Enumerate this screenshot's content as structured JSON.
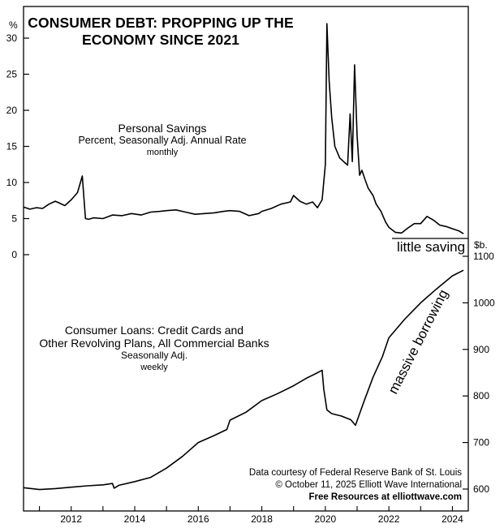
{
  "title_line1": "CONSUMER DEBT: PROPPING UP THE",
  "title_line2": "ECONOMY SINCE 2021",
  "savings_label": {
    "line1": "Personal Savings",
    "line2": "Percent, Seasonally Adj. Annual Rate",
    "line3": "monthly"
  },
  "loans_label": {
    "line1": "Consumer Loans: Credit Cards and",
    "line2": "Other Revolving Plans, All Commercial Banks",
    "line3": "Seasonally Adj.",
    "line4": "weekly"
  },
  "annotations": {
    "little_saving": "little saving",
    "massive_borrowing": "massive borrowing"
  },
  "credit": {
    "line1": "Data courtesy of Federal Reserve Bank of St. Louis",
    "line2": "© October 11, 2025  Elliott Wave International",
    "line3": "Free Resources at elliottwave.com"
  },
  "chart_data": [
    {
      "type": "line",
      "title": "Personal Savings",
      "ylabel": "%",
      "ylim": [
        0,
        33
      ],
      "yticks": [
        0,
        5,
        10,
        15,
        20,
        25,
        30
      ],
      "axis_side": "left",
      "series": [
        {
          "name": "Personal Savings",
          "x": [
            2010.5,
            2010.7,
            2010.9,
            2011.1,
            2011.3,
            2011.5,
            2011.6,
            2011.8,
            2012.0,
            2012.2,
            2012.35,
            2012.45,
            2012.55,
            2012.7,
            2013.0,
            2013.3,
            2013.6,
            2013.9,
            2014.2,
            2014.5,
            2014.8,
            2015.0,
            2015.3,
            2015.6,
            2015.9,
            2016.2,
            2016.5,
            2016.8,
            2017.0,
            2017.3,
            2017.6,
            2017.9,
            2018.0,
            2018.3,
            2018.6,
            2018.9,
            2019.0,
            2019.2,
            2019.4,
            2019.6,
            2019.75,
            2019.9,
            2020.0,
            2020.05,
            2020.12,
            2020.2,
            2020.3,
            2020.45,
            2020.6,
            2020.7,
            2020.78,
            2020.85,
            2020.92,
            2021.0,
            2021.08,
            2021.15,
            2021.25,
            2021.35,
            2021.5,
            2021.6,
            2021.75,
            2021.9,
            2022.0,
            2022.2,
            2022.4,
            2022.6,
            2022.8,
            2023.0,
            2023.2,
            2023.4,
            2023.6,
            2023.8,
            2024.0,
            2024.2,
            2024.35
          ],
          "y": [
            6.6,
            6.3,
            6.5,
            6.4,
            7.0,
            7.4,
            7.2,
            6.8,
            7.6,
            8.6,
            10.9,
            5.0,
            4.9,
            5.1,
            5.0,
            5.5,
            5.4,
            5.7,
            5.5,
            5.9,
            6.0,
            6.1,
            6.2,
            5.9,
            5.6,
            5.7,
            5.8,
            6.0,
            6.1,
            6.0,
            5.4,
            5.7,
            6.0,
            6.4,
            7.0,
            7.3,
            8.2,
            7.4,
            7.0,
            7.3,
            6.5,
            7.6,
            12.5,
            32.0,
            24.0,
            19.0,
            15.0,
            13.4,
            12.8,
            12.4,
            19.5,
            12.9,
            26.3,
            16.5,
            11.0,
            11.7,
            10.4,
            9.2,
            8.2,
            7.0,
            6.0,
            4.5,
            3.8,
            3.1,
            3.0,
            3.7,
            4.3,
            4.3,
            5.3,
            4.8,
            4.1,
            3.9,
            3.6,
            3.3,
            2.9
          ]
        }
      ]
    },
    {
      "type": "line",
      "title": "Consumer Loans: Credit Cards and Other Revolving Plans, All Commercial Banks",
      "ylabel": "$b.",
      "ylim": [
        580,
        1110
      ],
      "yticks": [
        600,
        700,
        800,
        900,
        1000,
        1100
      ],
      "axis_side": "right",
      "xlim": [
        2010.5,
        2024.5
      ],
      "xticks": [
        2012,
        2014,
        2016,
        2018,
        2020,
        2022,
        2024
      ],
      "series": [
        {
          "name": "Consumer Loans",
          "x": [
            2010.5,
            2011.0,
            2011.5,
            2012.0,
            2012.5,
            2013.0,
            2013.3,
            2013.35,
            2013.5,
            2014.0,
            2014.5,
            2015.0,
            2015.5,
            2016.0,
            2016.5,
            2016.9,
            2017.0,
            2017.5,
            2018.0,
            2018.5,
            2019.0,
            2019.4,
            2019.7,
            2019.9,
            2019.95,
            2020.05,
            2020.2,
            2020.5,
            2020.8,
            2020.95,
            2021.2,
            2021.5,
            2021.8,
            2022.0,
            2022.5,
            2023.0,
            2023.5,
            2024.0,
            2024.35
          ],
          "y": [
            603,
            599,
            601,
            604,
            607,
            609,
            612,
            602,
            608,
            616,
            625,
            645,
            670,
            700,
            715,
            728,
            748,
            765,
            790,
            805,
            822,
            838,
            848,
            855,
            815,
            770,
            762,
            757,
            749,
            737,
            785,
            840,
            885,
            925,
            965,
            1000,
            1030,
            1058,
            1070
          ]
        }
      ]
    }
  ]
}
